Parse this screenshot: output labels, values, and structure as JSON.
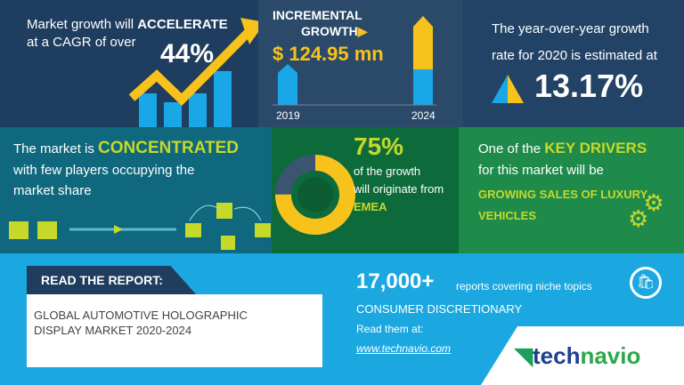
{
  "colors": {
    "navy": "#1f3d5e",
    "mid": "#2b4a6a",
    "teal": "#0f687d",
    "dgreen": "#0d6b3b",
    "green": "#1f8b4b",
    "blue": "#1aa7e8",
    "yellow": "#f7c21b",
    "lime": "#c6d82a",
    "light": "#1ba8e0"
  },
  "cagr": {
    "text1": "Market growth will ",
    "emph": "ACCELERATE",
    "text2": "at a CAGR of over",
    "value": "44%"
  },
  "incremental": {
    "title1": "INCREMENTAL",
    "title2": "GROWTH",
    "value": "$ 124.95 mn",
    "year_start": "2019",
    "year_end": "2024"
  },
  "yoy": {
    "text1": "The year-over-year growth",
    "text2": "rate for 2020 is estimated at",
    "value": "13.17%"
  },
  "concentration": {
    "text1": "The market is ",
    "emph": "CONCENTRATED",
    "text2": "with few players occupying the",
    "text3": "market share"
  },
  "region": {
    "value": "75%",
    "share": 0.75,
    "text1": "of the growth",
    "text2": "will originate from",
    "region": "EMEA"
  },
  "drivers": {
    "text1": "One of the ",
    "emph": "KEY DRIVERS",
    "text2": "for this market will be",
    "driver1": "GROWING SALES OF LUXURY",
    "driver2": "VEHICLES"
  },
  "report": {
    "label": "READ THE REPORT:",
    "title1": "GLOBAL AUTOMOTIVE HOLOGRAPHIC",
    "title2": "DISPLAY MARKET 2020-2024"
  },
  "promo": {
    "count": "17,000+",
    "count_text": "reports covering niche topics",
    "category": "CONSUMER DISCRETIONARY",
    "read": "Read them at:",
    "url": "www.technavio.com"
  },
  "logo": {
    "text1": "tech",
    "text2": "navio"
  }
}
